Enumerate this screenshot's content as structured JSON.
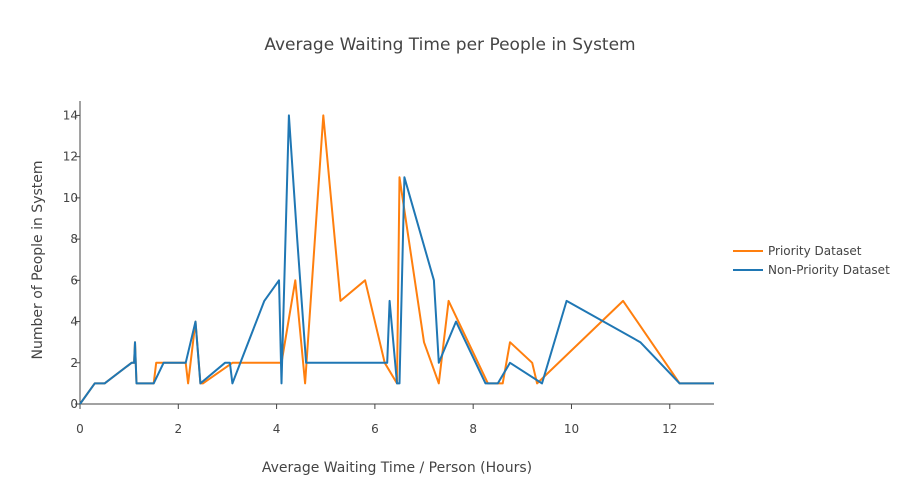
{
  "chart_data": {
    "type": "line",
    "title": "Average Waiting Time per People in System",
    "xlabel": "Average Waiting Time / Person (Hours)",
    "ylabel": "Number of People in System",
    "xlim": [
      0,
      12.9
    ],
    "ylim": [
      0,
      14.7
    ],
    "xticks": [
      0,
      2,
      4,
      6,
      8,
      10,
      12
    ],
    "yticks": [
      0,
      2,
      4,
      6,
      8,
      10,
      12,
      14
    ],
    "grid": false,
    "legend_position": "right",
    "series": [
      {
        "name": "Priority Dataset",
        "color": "#ff7f0e",
        "x": [
          0,
          0.3,
          0.5,
          1.05,
          1.1,
          1.12,
          1.15,
          1.5,
          1.55,
          1.7,
          2.15,
          2.2,
          2.35,
          2.45,
          2.5,
          3.1,
          4.1,
          4.38,
          4.58,
          4.95,
          5.3,
          5.8,
          6.2,
          6.45,
          6.5,
          7.0,
          7.3,
          7.5,
          7.7,
          8.3,
          8.6,
          8.75,
          9.2,
          9.3,
          11.05,
          12.2,
          12.9
        ],
        "y": [
          0,
          1,
          1,
          2,
          2,
          3,
          1,
          1,
          2,
          2,
          2,
          1,
          4,
          1,
          1,
          2,
          2,
          6,
          1,
          14,
          5,
          6,
          2,
          1,
          11,
          3,
          1,
          5,
          4,
          1,
          1,
          3,
          2,
          1,
          5,
          1,
          1
        ]
      },
      {
        "name": "Non-Priority Dataset",
        "color": "#1f77b4",
        "x": [
          0,
          0.3,
          0.5,
          1.05,
          1.1,
          1.12,
          1.15,
          1.5,
          1.7,
          2.15,
          2.35,
          2.45,
          2.95,
          3.05,
          3.1,
          3.75,
          4.05,
          4.1,
          4.25,
          4.42,
          4.6,
          6.25,
          6.3,
          6.45,
          6.5,
          6.6,
          7.2,
          7.3,
          7.65,
          8.25,
          8.5,
          8.75,
          9.4,
          9.9,
          11.4,
          12.2,
          12.9
        ],
        "y": [
          0,
          1,
          1,
          2,
          2,
          3,
          1,
          1,
          2,
          2,
          4,
          1,
          2,
          2,
          1,
          5,
          6,
          1,
          14,
          8,
          2,
          2,
          5,
          1,
          1,
          11,
          6,
          2,
          4,
          1,
          1,
          2,
          1,
          5,
          3,
          1,
          1
        ]
      }
    ]
  }
}
